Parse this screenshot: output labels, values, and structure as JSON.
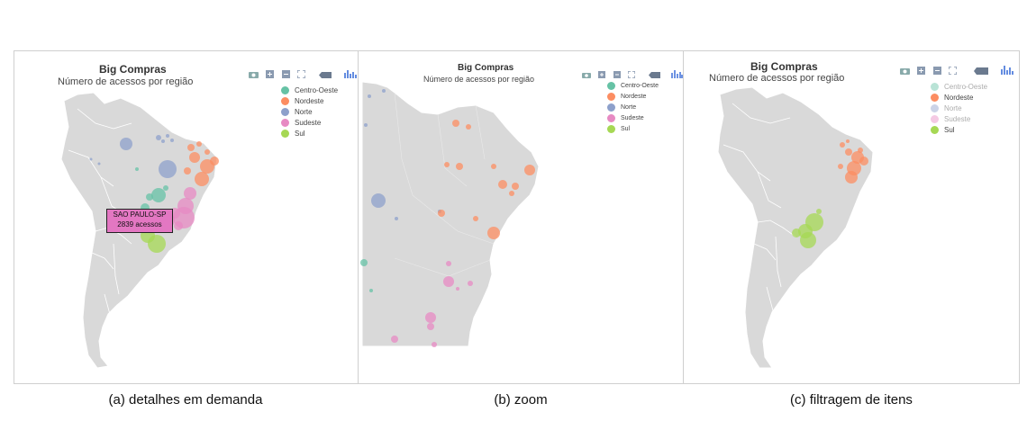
{
  "panels": [
    {
      "id": "a",
      "title": "Big Compras",
      "subtitle": "Número de acessos por região",
      "caption": "(a) detalhes em demanda",
      "tooltip": {
        "city": "SAO PAULO-SP",
        "value": "2839",
        "unit": "acessos"
      },
      "legend": [
        {
          "label": "Centro-Oeste",
          "color": "#66c2a5",
          "active": true
        },
        {
          "label": "Nordeste",
          "color": "#fc8d62",
          "active": true
        },
        {
          "label": "Norte",
          "color": "#8da0cb",
          "active": true
        },
        {
          "label": "Sudeste",
          "color": "#e78ac3",
          "active": true
        },
        {
          "label": "Sul",
          "color": "#a6d854",
          "active": true
        }
      ]
    },
    {
      "id": "b",
      "title": "Big Compras",
      "subtitle": "Número de acessos por região",
      "caption": "(b) zoom",
      "legend": [
        {
          "label": "Centro-Oeste",
          "color": "#66c2a5",
          "active": true
        },
        {
          "label": "Nordeste",
          "color": "#fc8d62",
          "active": true
        },
        {
          "label": "Norte",
          "color": "#8da0cb",
          "active": true
        },
        {
          "label": "Sudeste",
          "color": "#e78ac3",
          "active": true
        },
        {
          "label": "Sul",
          "color": "#a6d854",
          "active": true
        }
      ]
    },
    {
      "id": "c",
      "title": "Big Compras",
      "subtitle": "Número de acessos por região",
      "caption": "(c) filtragem de itens",
      "legend": [
        {
          "label": "Centro-Oeste",
          "color": "#66c2a5",
          "active": false
        },
        {
          "label": "Nordeste",
          "color": "#fc8d62",
          "active": true
        },
        {
          "label": "Norte",
          "color": "#8da0cb",
          "active": false
        },
        {
          "label": "Sudeste",
          "color": "#e78ac3",
          "active": false
        },
        {
          "label": "Sul",
          "color": "#a6d854",
          "active": true
        }
      ]
    }
  ],
  "toolbar_icons": [
    "camera-icon",
    "zoom-in-icon",
    "zoom-out-icon",
    "autoscale-icon",
    "tag-icon",
    "plotly-logo-icon"
  ],
  "map_fill": "#d9d9d9",
  "map_border": "#ffffff"
}
